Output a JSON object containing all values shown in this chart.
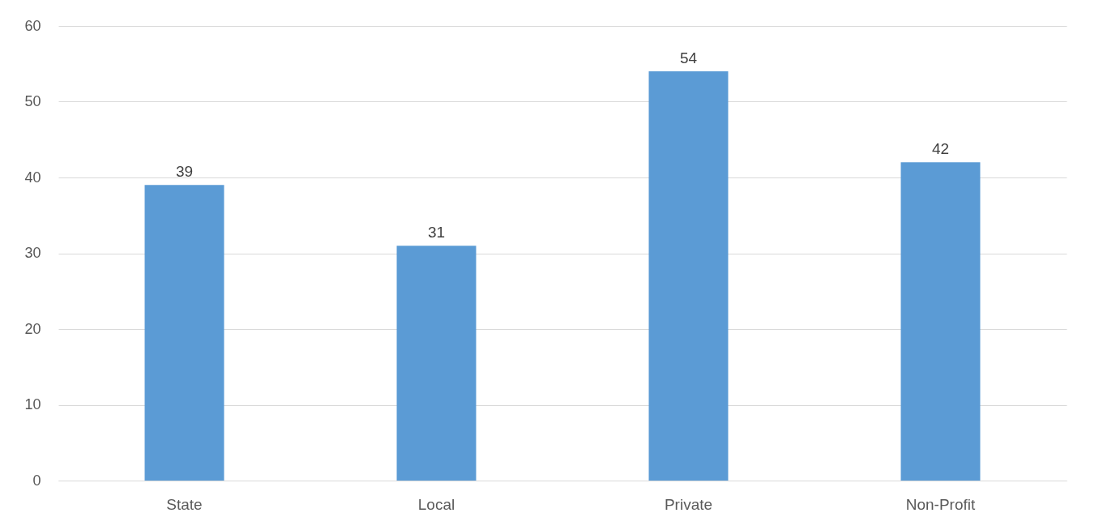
{
  "chart_data": {
    "type": "bar",
    "categories": [
      "State",
      "Local",
      "Private",
      "Non-Profit"
    ],
    "values": [
      39,
      31,
      54,
      42
    ],
    "color": "#5b9bd5",
    "ylim": [
      0,
      60
    ],
    "yticks": [
      0,
      10,
      20,
      30,
      40,
      50,
      60
    ],
    "grid": "y",
    "data_labels": true
  }
}
